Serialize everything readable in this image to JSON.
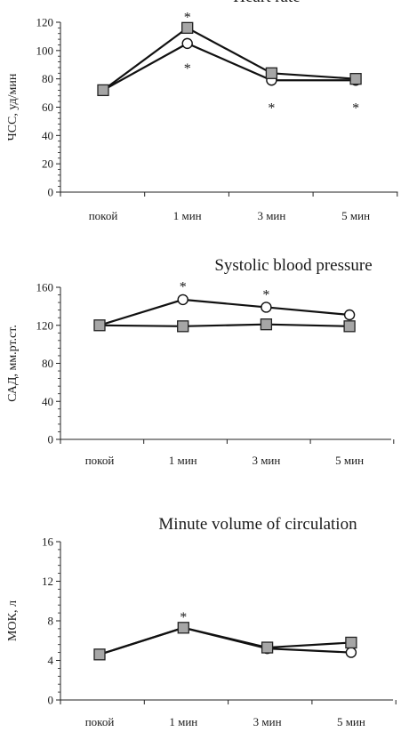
{
  "chart_data": [
    {
      "type": "line",
      "title": "Heart rate",
      "xlabel": "",
      "ylabel": "ЧСС, уд/мин",
      "ylim": [
        0,
        120
      ],
      "yticks": [
        "0",
        "20",
        "40",
        "60",
        "80",
        "100",
        "120"
      ],
      "categories": [
        "покой",
        "1 мин",
        "3 мин",
        "5 мин"
      ],
      "grid": false,
      "legend": "none",
      "series": [
        {
          "marker": "circle",
          "fill": "#ffffff",
          "values": [
            72,
            105,
            79,
            79
          ]
        },
        {
          "marker": "square",
          "fill": "#a6a6a6",
          "values": [
            72,
            116,
            84,
            80
          ]
        }
      ],
      "annotations": [
        {
          "category": "1 мин",
          "y": 126,
          "text": "*"
        },
        {
          "category": "1 мин",
          "y": 90,
          "text": "*"
        },
        {
          "category": "3 мин",
          "y": 62,
          "text": "*"
        },
        {
          "category": "5 мин",
          "y": 62,
          "text": "*"
        }
      ]
    },
    {
      "type": "line",
      "title": "Systolic blood pressure",
      "xlabel": "",
      "ylabel": "САД, мм.рт.ст.",
      "ylim": [
        0,
        160
      ],
      "yticks": [
        "0",
        "40",
        "80",
        "120",
        "160"
      ],
      "categories": [
        "покой",
        "1 мин",
        "3 мин",
        "5 мин"
      ],
      "grid": false,
      "legend": "none",
      "series": [
        {
          "marker": "circle",
          "fill": "#ffffff",
          "values": [
            120,
            147,
            139,
            131
          ]
        },
        {
          "marker": "square",
          "fill": "#a6a6a6",
          "values": [
            120,
            119,
            121,
            119
          ]
        }
      ],
      "annotations": [
        {
          "category": "1 мин",
          "y": 164,
          "text": "*"
        },
        {
          "category": "3 мин",
          "y": 156,
          "text": "*"
        }
      ]
    },
    {
      "type": "line",
      "title": "Minute volume of circulation",
      "xlabel": "",
      "ylabel": "МОК, л",
      "ylim": [
        0,
        16
      ],
      "yticks": [
        "0",
        "4",
        "8",
        "12",
        "16"
      ],
      "categories": [
        "покой",
        "1 мин",
        "3 мин",
        "5 мин"
      ],
      "grid": false,
      "legend": "none",
      "series": [
        {
          "marker": "circle",
          "fill": "#ffffff",
          "values": [
            4.6,
            7.3,
            5.2,
            4.8
          ]
        },
        {
          "marker": "square",
          "fill": "#a6a6a6",
          "values": [
            4.6,
            7.3,
            5.3,
            5.8
          ]
        }
      ],
      "annotations": [
        {
          "category": "1 мин",
          "y": 8.7,
          "text": "*"
        }
      ]
    }
  ]
}
